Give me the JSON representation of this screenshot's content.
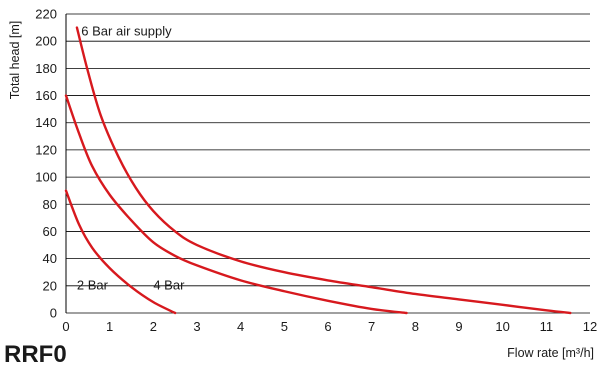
{
  "chart_data": {
    "type": "line",
    "title": "",
    "xlabel": "Flow rate [m³/h]",
    "ylabel": "Total head [m]",
    "xlim": [
      0,
      12
    ],
    "ylim": [
      0,
      220
    ],
    "x_ticks": [
      "0",
      "1",
      "2",
      "3",
      "4",
      "5",
      "6",
      "7",
      "8",
      "9",
      "10",
      "11",
      "12"
    ],
    "y_ticks": [
      "0",
      "20",
      "40",
      "60",
      "80",
      "100",
      "120",
      "140",
      "160",
      "180",
      "200",
      "220"
    ],
    "grid": "horizontal",
    "line_color": "#d7191e",
    "series": [
      {
        "name": "2 Bar",
        "points": [
          [
            0,
            90
          ],
          [
            0.3,
            65
          ],
          [
            0.6,
            48
          ],
          [
            1.0,
            33
          ],
          [
            1.5,
            19
          ],
          [
            2.0,
            8
          ],
          [
            2.5,
            0
          ]
        ]
      },
      {
        "name": "4 Bar",
        "points": [
          [
            0,
            160
          ],
          [
            0.3,
            132
          ],
          [
            0.6,
            108
          ],
          [
            1.0,
            87
          ],
          [
            1.5,
            68
          ],
          [
            2.0,
            52
          ],
          [
            2.5,
            42
          ],
          [
            3.0,
            35
          ],
          [
            4.0,
            24
          ],
          [
            5.0,
            16
          ],
          [
            6.0,
            9
          ],
          [
            7.0,
            3
          ],
          [
            7.8,
            0
          ]
        ]
      },
      {
        "name": "6 Bar air supply",
        "points": [
          [
            0.25,
            210
          ],
          [
            0.5,
            178
          ],
          [
            0.8,
            145
          ],
          [
            1.2,
            115
          ],
          [
            1.6,
            92
          ],
          [
            2.0,
            75
          ],
          [
            2.5,
            60
          ],
          [
            3.0,
            50
          ],
          [
            4.0,
            38
          ],
          [
            5.0,
            30
          ],
          [
            6.0,
            24
          ],
          [
            7.0,
            19
          ],
          [
            8.0,
            14
          ],
          [
            9.0,
            10
          ],
          [
            10.0,
            6
          ],
          [
            11.0,
            2
          ],
          [
            11.55,
            0
          ]
        ]
      }
    ],
    "annotations": [
      {
        "text": "6 Bar air supply",
        "x": 0.35,
        "y": 208
      },
      {
        "text": "4 Bar",
        "x": 2.0,
        "y": 21
      },
      {
        "text": "2 Bar",
        "x": 0.25,
        "y": 21
      }
    ]
  },
  "watermark_text": "RRF0"
}
